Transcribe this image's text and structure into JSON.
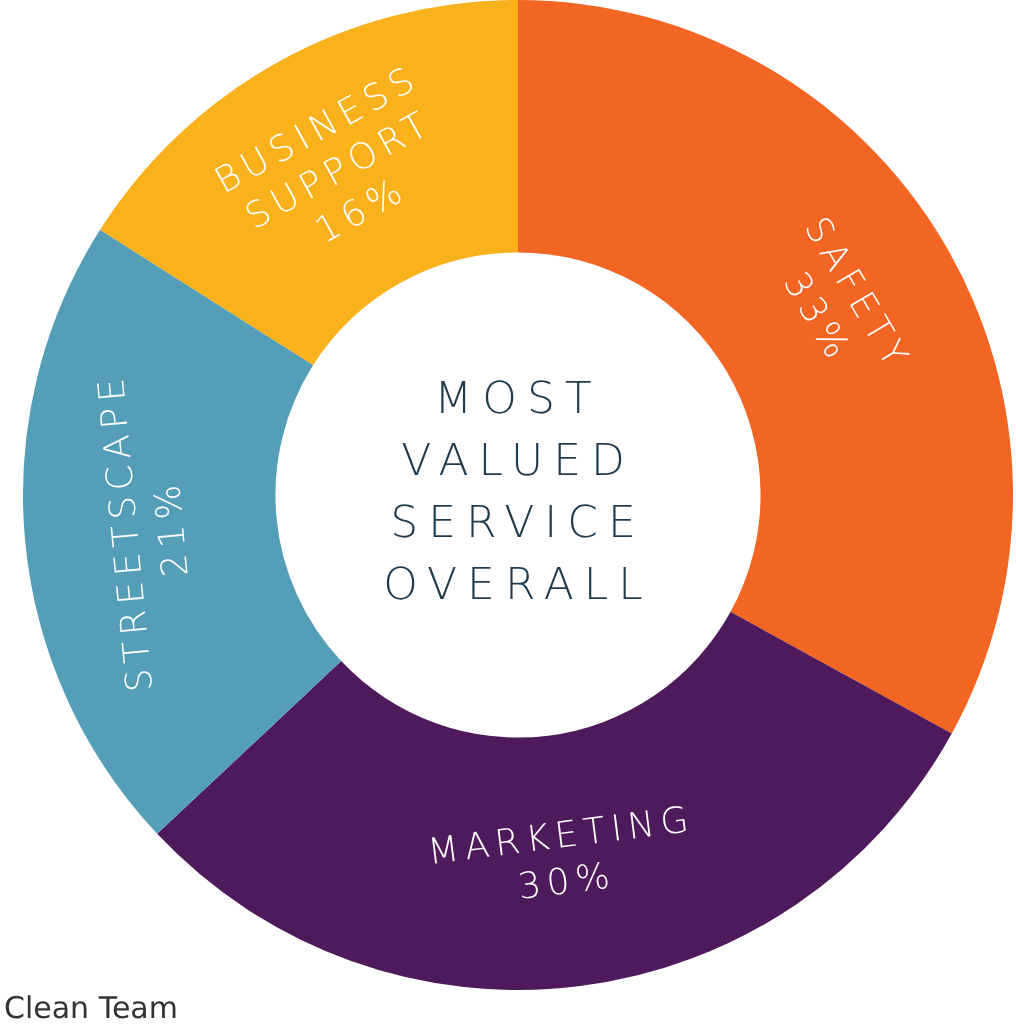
{
  "chart_data": {
    "type": "donut",
    "title": "MOST VALUED SERVICE OVERALL",
    "categories": [
      "SAFETY",
      "MARKETING",
      "STREETSCAPE",
      "BUSINESS SUPPORT"
    ],
    "values": [
      33,
      30,
      21,
      16
    ],
    "colors": [
      "#f26522",
      "#4f1a5b",
      "#559eb8",
      "#f9b21b"
    ],
    "value_labels": [
      "33%",
      "30%",
      "21%",
      "16%"
    ],
    "legend": false,
    "annotations": [
      "Clean Team"
    ]
  }
}
